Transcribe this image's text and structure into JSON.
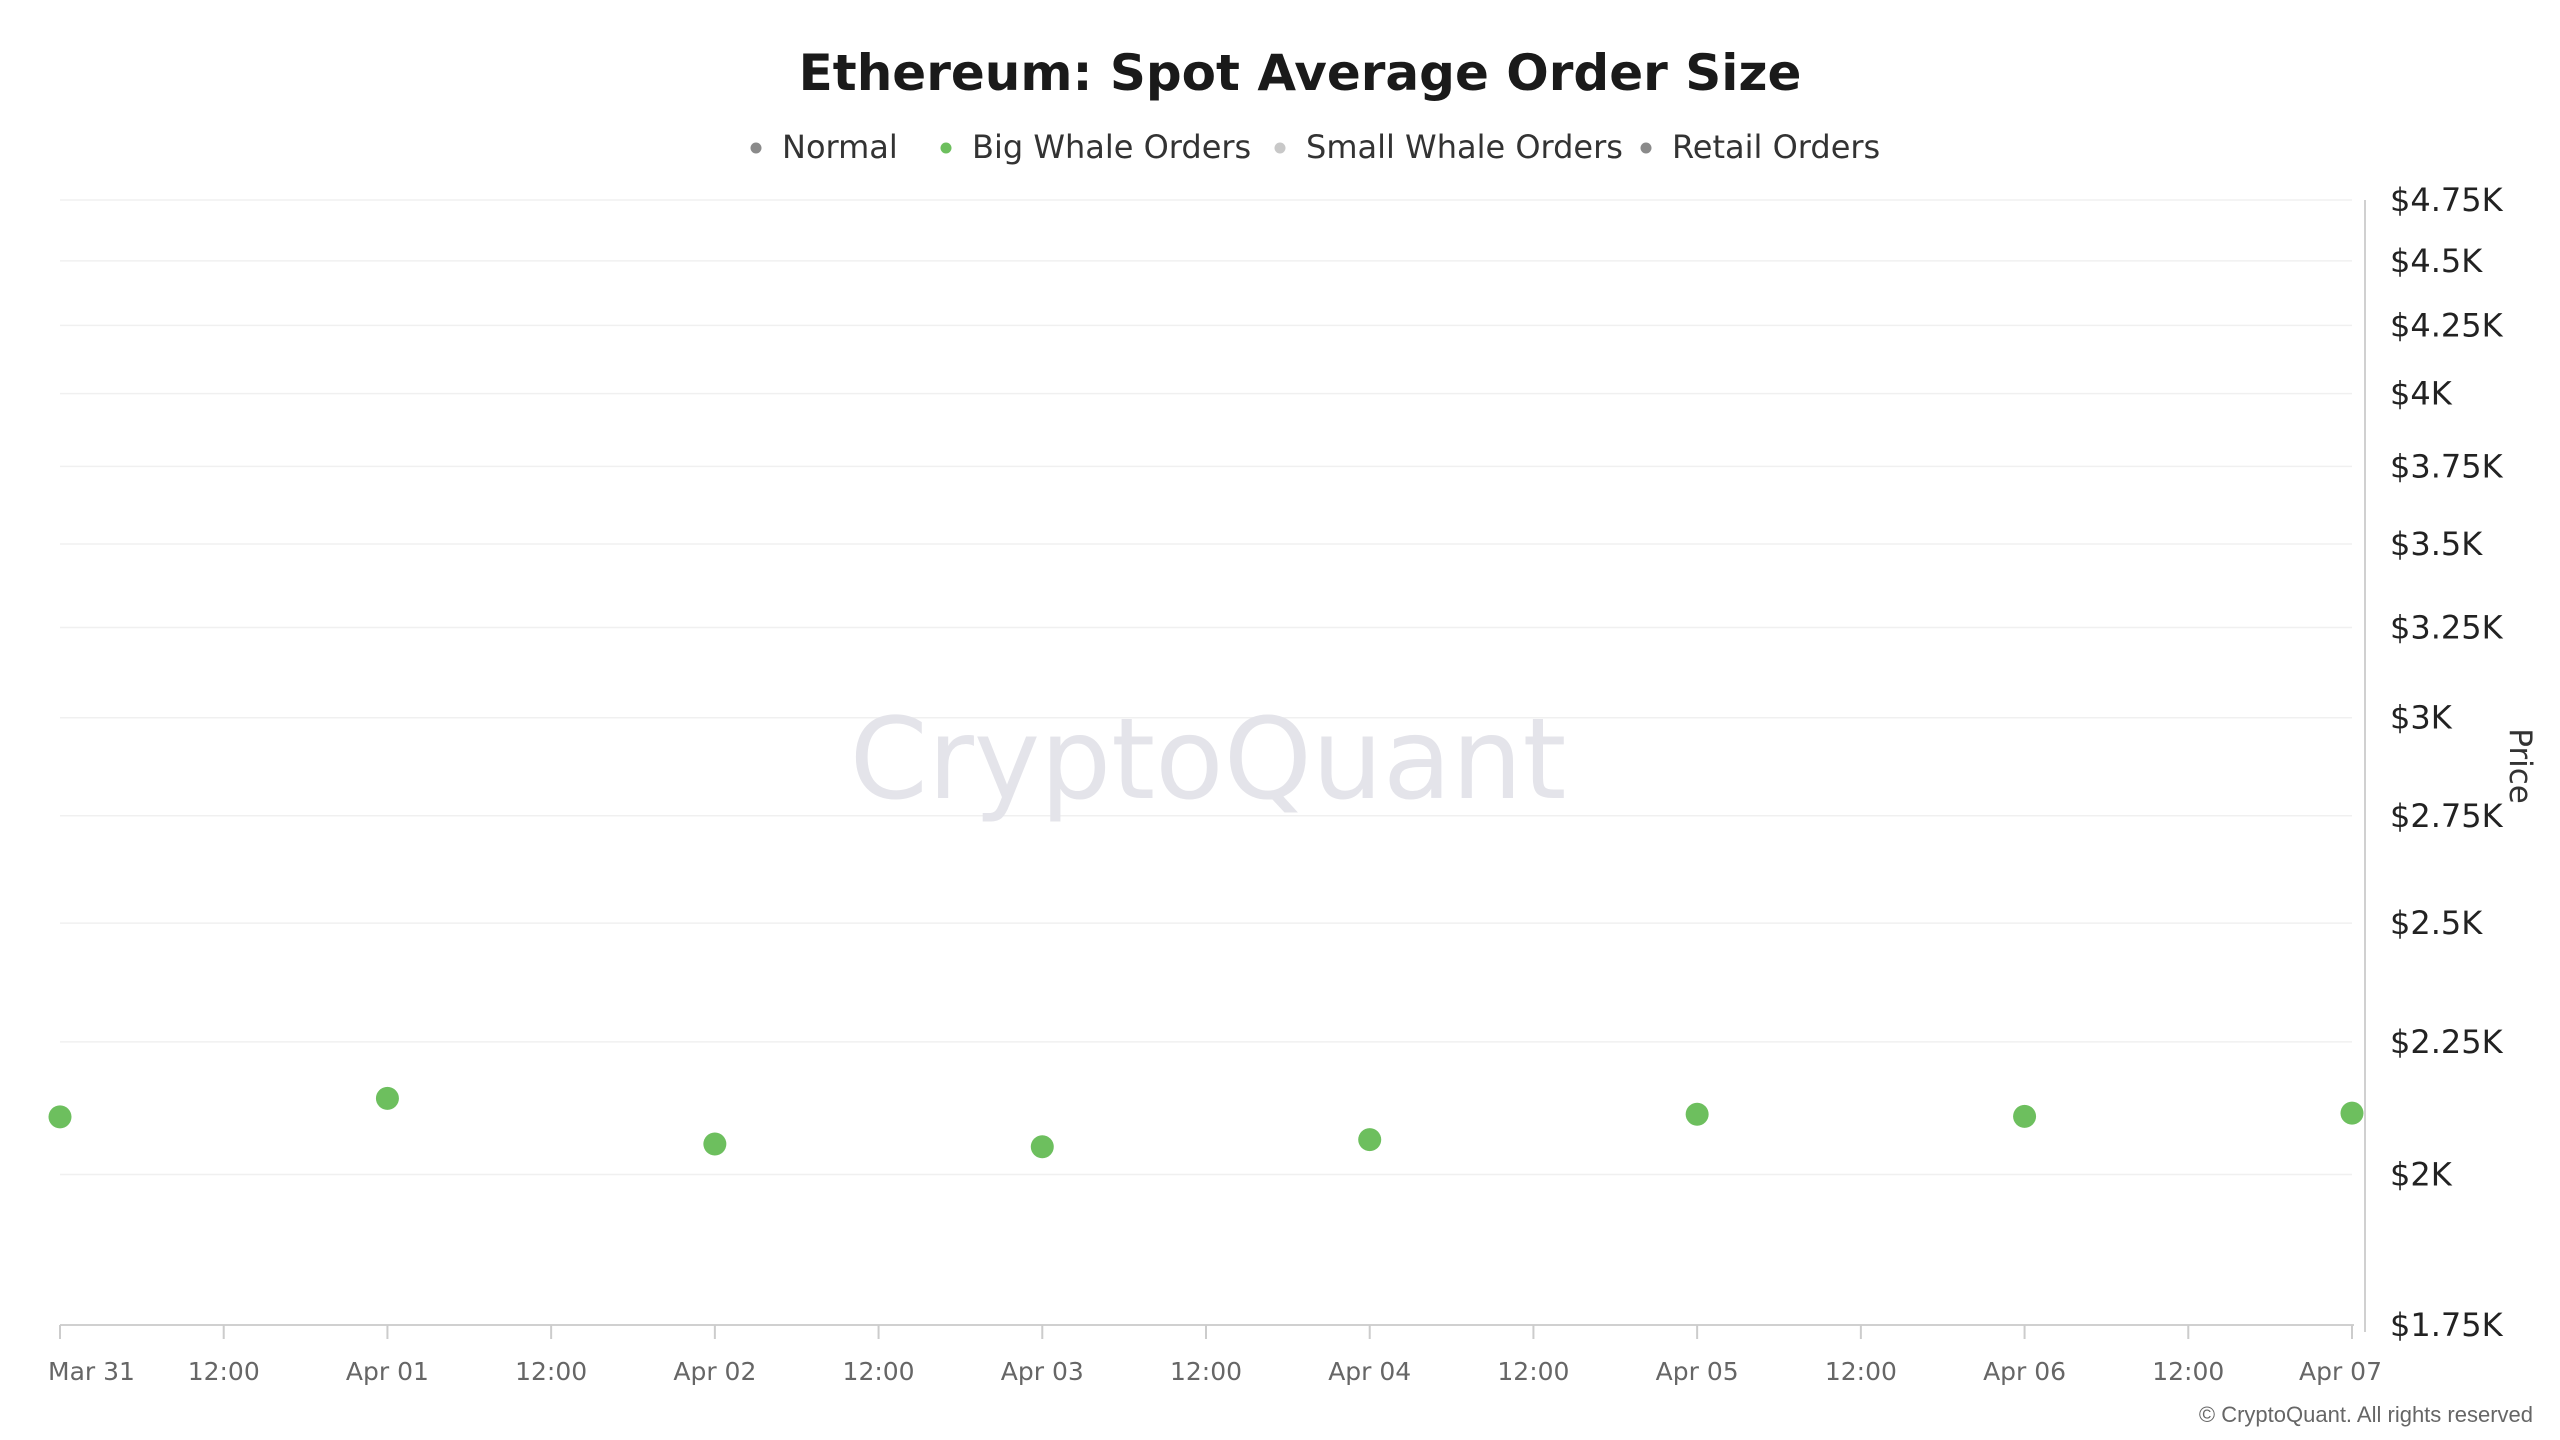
{
  "chart_data": {
    "type": "scatter",
    "title": "Ethereum: Spot Average Order Size",
    "legend": {
      "placement": "top-center",
      "items": [
        {
          "name": "Normal",
          "color": "#8a8a8a"
        },
        {
          "name": "Big Whale Orders",
          "color": "#6dbf5e"
        },
        {
          "name": "Small Whale Orders",
          "color": "#c8c8c8"
        },
        {
          "name": "Retail Orders",
          "color": "#8a8a8a"
        }
      ]
    },
    "x_ticks": [
      "Mar 31",
      "12:00",
      "Apr 01",
      "12:00",
      "Apr 02",
      "12:00",
      "Apr 03",
      "12:00",
      "Apr 04",
      "12:00",
      "Apr 05",
      "12:00",
      "Apr 06",
      "12:00",
      "Apr 07"
    ],
    "y_axis": {
      "label": "Price",
      "position": "right",
      "ticks": [
        1750,
        2000,
        2250,
        2500,
        2750,
        3000,
        3250,
        3500,
        3750,
        4000,
        4250,
        4500,
        4750
      ],
      "tick_labels": [
        "$1.75K",
        "$2K",
        "$2.25K",
        "$2.5K",
        "$2.75K",
        "$3K",
        "$3.25K",
        "$3.5K",
        "$3.75K",
        "$4K",
        "$4.25K",
        "$4.5K",
        "$4.75K"
      ],
      "range": [
        1750,
        4750
      ]
    },
    "grid": true,
    "series": [
      {
        "name": "Big Whale Orders",
        "color": "#6dbf5e",
        "x": [
          "Mar 31",
          "Apr 01",
          "Apr 02",
          "Apr 03",
          "Apr 04",
          "Apr 05",
          "Apr 06",
          "Apr 07"
        ],
        "y": [
          2105,
          2140,
          2055,
          2050,
          2063,
          2110,
          2106,
          2112
        ]
      }
    ]
  },
  "watermark": "CryptoQuant",
  "credit": "© CryptoQuant. All rights reserved"
}
